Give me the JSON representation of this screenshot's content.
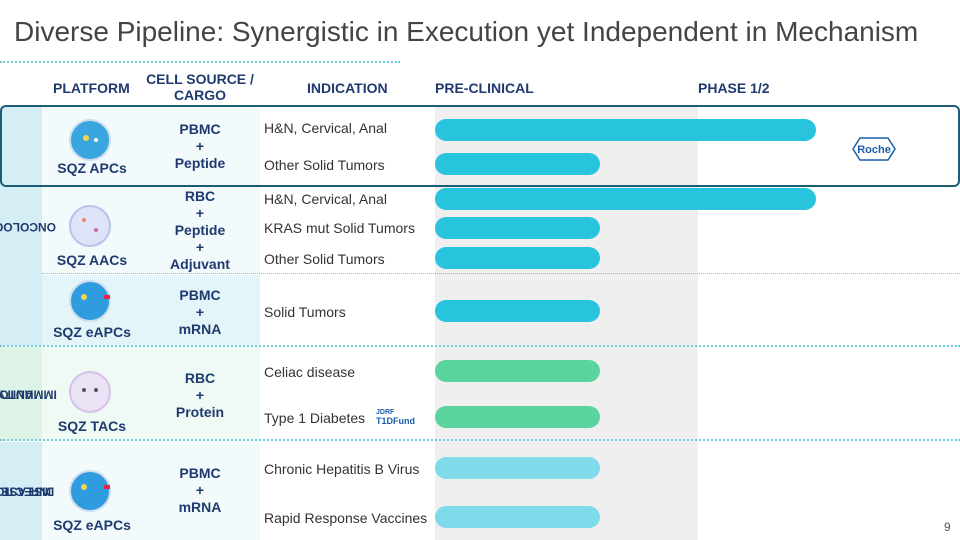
{
  "title": "Diverse Pipeline: Synergistic in Execution yet Independent in Mechanism",
  "page_number": "9",
  "header": {
    "platform": "PLATFORM",
    "cell_source": "CELL SOURCE / CARGO",
    "indication": "INDICATION",
    "preclinical": "PRE-CLINICAL",
    "phase": "PHASE 1/2"
  },
  "sections": [
    {
      "label": [
        "ONCOLOGY"
      ]
    },
    {
      "label": [
        "AUTO-",
        "IMMUNITY"
      ]
    },
    {
      "label": [
        "INFECTIOUS",
        "DISEASE"
      ]
    }
  ],
  "programs": [
    {
      "platform": "SQZ APCs",
      "cargo": [
        "PBMC",
        "+",
        "Peptide"
      ],
      "indications": [
        "H&N, Cervical, Anal",
        "Other Solid Tumors"
      ],
      "partner": "Roche"
    },
    {
      "platform": "SQZ AACs",
      "cargo": [
        "RBC",
        "+",
        "Peptide",
        "+",
        "Adjuvant"
      ],
      "indications": [
        "H&N, Cervical, Anal",
        "KRAS mut Solid Tumors",
        "Other Solid Tumors"
      ]
    },
    {
      "platform": "SQZ eAPCs",
      "cargo": [
        "PBMC",
        "+",
        "mRNA"
      ],
      "indications": [
        "Solid Tumors"
      ]
    },
    {
      "platform": "SQZ TACs",
      "cargo": [
        "RBC",
        "+",
        "Protein"
      ],
      "indications": [
        "Celiac disease",
        "Type 1 Diabetes"
      ],
      "partner": [
        "JDRF",
        "T1DFund"
      ]
    },
    {
      "platform": "SQZ eAPCs",
      "cargo": [
        "PBMC",
        "+",
        "mRNA"
      ],
      "indications": [
        "Chronic Hepatitis B Virus",
        "Rapid Response Vaccines"
      ]
    }
  ]
}
